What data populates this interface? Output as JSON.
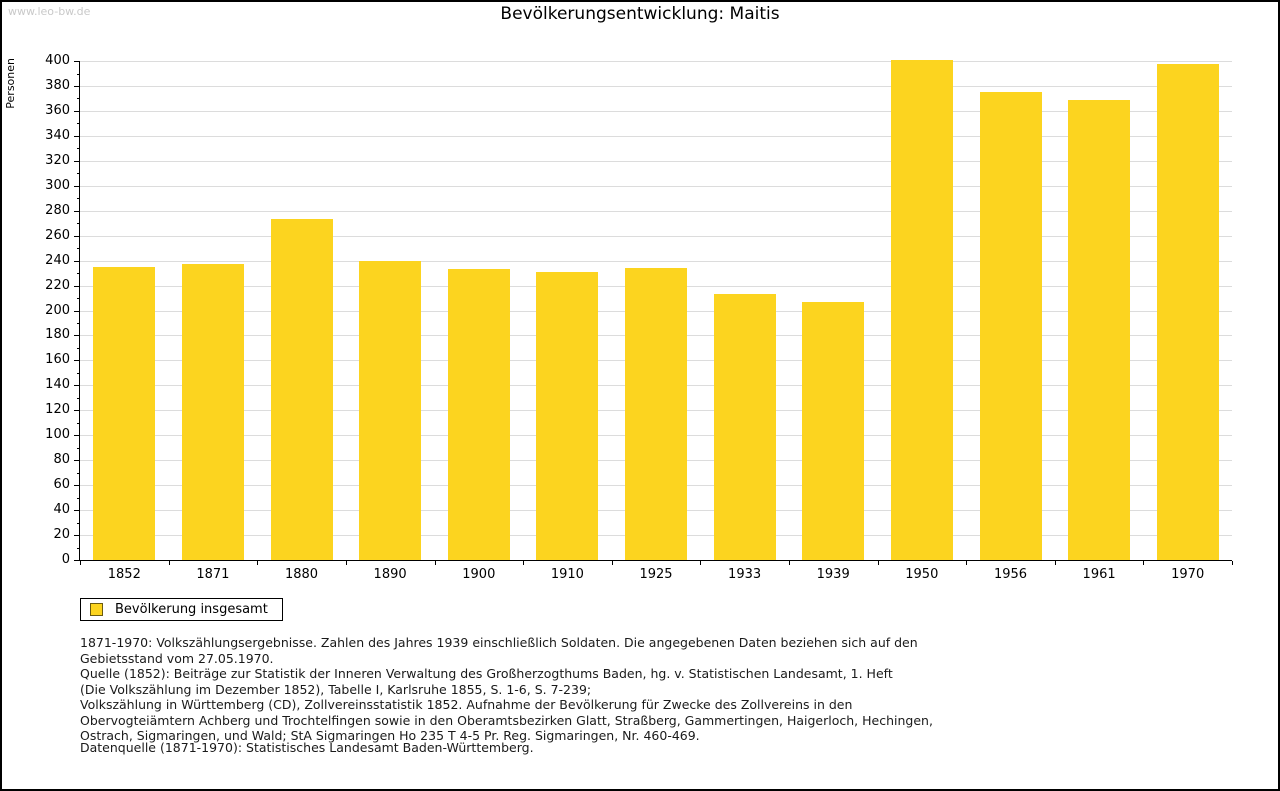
{
  "watermark": "www.leo-bw.de",
  "title": "Bevölkerungsentwicklung: Maitis",
  "chart_data": {
    "type": "bar",
    "title": "Bevölkerungsentwicklung: Maitis",
    "categories": [
      "1852",
      "1871",
      "1880",
      "1890",
      "1900",
      "1910",
      "1925",
      "1933",
      "1939",
      "1950",
      "1956",
      "1961",
      "1970"
    ],
    "values": [
      235,
      237,
      273,
      240,
      233,
      231,
      234,
      213,
      207,
      401,
      375,
      369,
      398
    ],
    "series_name": "Bevölkerung insgesamt",
    "xlabel": "",
    "ylabel": "Personen",
    "ylim": [
      0,
      400
    ],
    "ytick_step": 20,
    "minor_tick_step": 10,
    "grid": true,
    "bar_color": "#FCD41F",
    "legend_position": "bottom-left"
  },
  "legend": {
    "label": "Bevölkerung insgesamt",
    "swatch_color": "#FCD41F"
  },
  "footnotes": [
    "1871-1970: Volkszählungsergebnisse. Zahlen des Jahres 1939 einschließlich Soldaten. Die angegebenen Daten beziehen sich auf den",
    "Gebietsstand vom 27.05.1970.",
    "Quelle (1852): Beiträge zur Statistik der Inneren Verwaltung des Großherzogthums Baden, hg. v. Statistischen Landesamt, 1. Heft",
    "(Die Volkszählung im Dezember 1852), Tabelle I, Karlsruhe 1855, S. 1-6, S. 7-239;",
    "Volkszählung in Württemberg (CD), Zollvereinsstatistik 1852. Aufnahme der Bevölkerung für Zwecke des Zollvereins in den",
    "Obervogteiämtern Achberg und Trochtelfingen sowie in den Oberamtsbezirken Glatt, Straßberg, Gammertingen, Haigerloch, Hechingen,",
    "Ostrach, Sigmaringen, und Wald; StA Sigmaringen Ho 235 T 4-5 Pr. Reg. Sigmaringen, Nr. 460-469."
  ],
  "datasource": "Datenquelle (1871-1970): Statistisches Landesamt Baden-Württemberg."
}
